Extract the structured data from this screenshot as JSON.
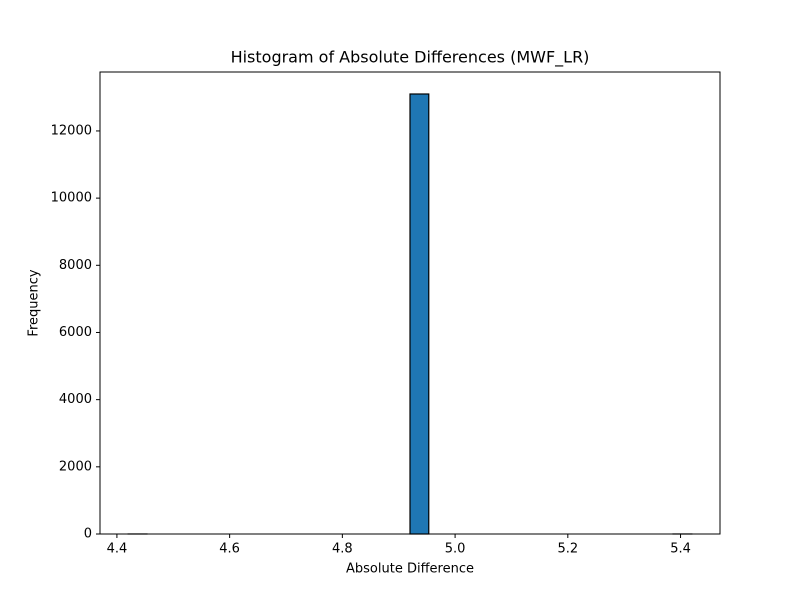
{
  "chart_data": {
    "type": "histogram",
    "title": "Histogram of Absolute Differences (MWF_LR)",
    "x_label": "Absolute Difference",
    "y_label": "Frequency",
    "bins": [
      4.42,
      4.4533,
      4.4867,
      4.52,
      4.5533,
      4.5867,
      4.62,
      4.6533,
      4.6867,
      4.72,
      4.7533,
      4.7867,
      4.82,
      4.8533,
      4.8867,
      4.92,
      4.9533,
      4.9867,
      5.02,
      5.0533,
      5.0867,
      5.12,
      5.1533,
      5.1867,
      5.22,
      5.2533,
      5.2867,
      5.32,
      5.3533,
      5.3867,
      5.42
    ],
    "values": [
      1,
      0,
      0,
      0,
      0,
      0,
      0,
      0,
      0,
      0,
      0,
      0,
      0,
      0,
      0,
      13100,
      0,
      0,
      0,
      0,
      0,
      0,
      0,
      0,
      0,
      0,
      0,
      0,
      0,
      1
    ],
    "color": "#1f77b4",
    "edge_color": "#000000",
    "xlim": [
      4.37,
      5.47
    ],
    "ylim": [
      0,
      13755
    ],
    "xticks": [
      4.4,
      4.6,
      4.8,
      {
        "value": 5,
        "label": "5.0"
      },
      5.2,
      5.4
    ],
    "yticks": [
      0,
      2000,
      4000,
      6000,
      8000,
      10000,
      12000
    ],
    "grid": false
  }
}
